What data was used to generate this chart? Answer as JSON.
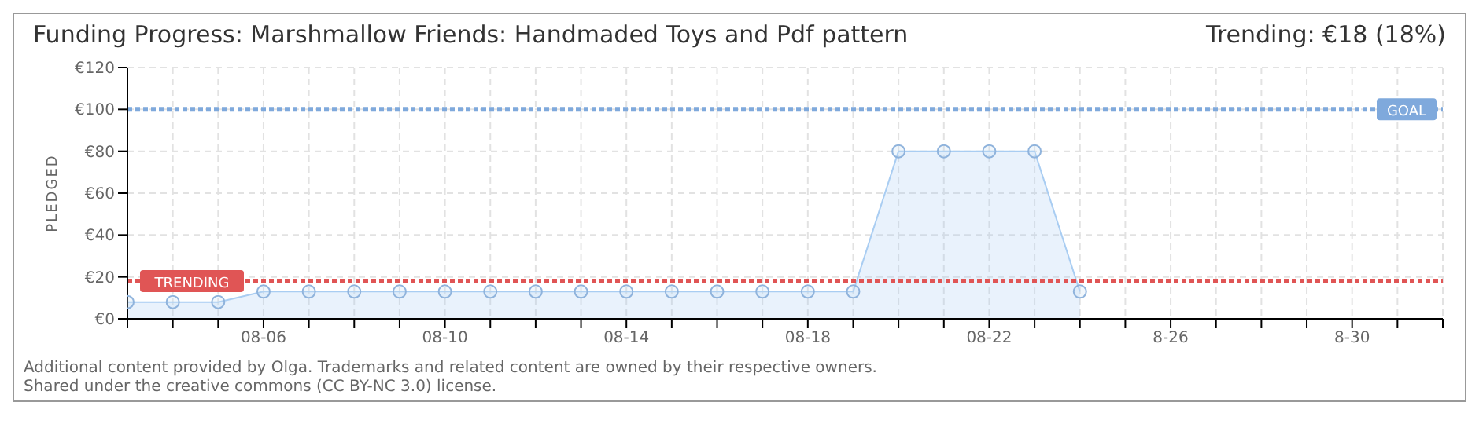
{
  "chart_data": {
    "type": "area",
    "title": "Funding Progress: Marshmallow Friends: Handmaded Toys and Pdf pattern",
    "subtitle": "Trending:  €18 (18%)",
    "ylabel": "PLEDGED",
    "x": [
      "--08-03",
      "--08-04",
      "--08-05",
      "--08-06",
      "--08-07",
      "--08-08",
      "--08-09",
      "--08-10",
      "--08-11",
      "--08-12",
      "--08-13",
      "--08-14",
      "--08-15",
      "--08-16",
      "--08-17",
      "--08-18",
      "--08-19",
      "--08-20",
      "--08-21",
      "--08-22",
      "--08-23",
      "--08-24"
    ],
    "series": [
      {
        "color": "#a9cdf2",
        "values": [
          8,
          8,
          8,
          13,
          13,
          13,
          13,
          13,
          13,
          13,
          13,
          13,
          13,
          13,
          13,
          13,
          13,
          80,
          80,
          80,
          80,
          13
        ]
      }
    ],
    "xlim": [
      "--08-03",
      "--09-01"
    ],
    "xticks": [
      {
        "value": "--08-03",
        "label": null
      },
      {
        "value": "--08-04",
        "label": null
      },
      {
        "value": "--08-05",
        "label": null
      },
      {
        "value": "--08-06",
        "label": "08-06"
      },
      {
        "value": "--08-07",
        "label": null
      },
      {
        "value": "--08-08",
        "label": null
      },
      {
        "value": "--08-09",
        "label": null
      },
      {
        "value": "--08-10",
        "label": "08-10"
      },
      {
        "value": "--08-11",
        "label": null
      },
      {
        "value": "--08-12",
        "label": null
      },
      {
        "value": "--08-13",
        "label": null
      },
      {
        "value": "--08-14",
        "label": "08-14"
      },
      {
        "value": "--08-15",
        "label": null
      },
      {
        "value": "--08-16",
        "label": null
      },
      {
        "value": "--08-17",
        "label": null
      },
      {
        "value": "--08-18",
        "label": "08-18"
      },
      {
        "value": "--08-19",
        "label": null
      },
      {
        "value": "--08-20",
        "label": null
      },
      {
        "value": "--08-21",
        "label": null
      },
      {
        "value": "--08-22",
        "label": "08-22"
      },
      {
        "value": "--08-23",
        "label": null
      },
      {
        "value": "--08-24",
        "label": null
      },
      {
        "value": "--08-25",
        "label": null
      },
      {
        "value": "--08-26",
        "label": "8-26"
      },
      {
        "value": "--08-27",
        "label": null
      },
      {
        "value": "--08-28",
        "label": null
      },
      {
        "value": "--08-29",
        "label": null
      },
      {
        "value": "--08-30",
        "label": "8-30"
      },
      {
        "value": "--08-31",
        "label": null
      },
      {
        "value": "--09-01",
        "label": null
      }
    ],
    "ylim": [
      0,
      120
    ],
    "yticks": [
      {
        "value": 0,
        "label": "€0"
      },
      {
        "value": 20,
        "label": "€20"
      },
      {
        "value": 40,
        "label": "€40"
      },
      {
        "value": 60,
        "label": "€60"
      },
      {
        "value": 80,
        "label": "€80"
      },
      {
        "value": 100,
        "label": "€100"
      },
      {
        "value": 120,
        "label": "€120"
      }
    ],
    "ref_lines": [
      {
        "axis": "y",
        "value": 100,
        "label": "GOAL",
        "color": "#7fa9dc",
        "line_style": "dotted"
      },
      {
        "axis": "y",
        "value": 18,
        "label": "TRENDING",
        "color": "#e05555",
        "line_style": "dotted"
      }
    ],
    "grid": true,
    "marker": "circle",
    "legend": false,
    "annotations": [
      "Additional content provided by Olga. Trademarks and related content are owned by their respective owners.",
      "Shared under the creative commons (CC BY-NC 3.0) license."
    ]
  }
}
